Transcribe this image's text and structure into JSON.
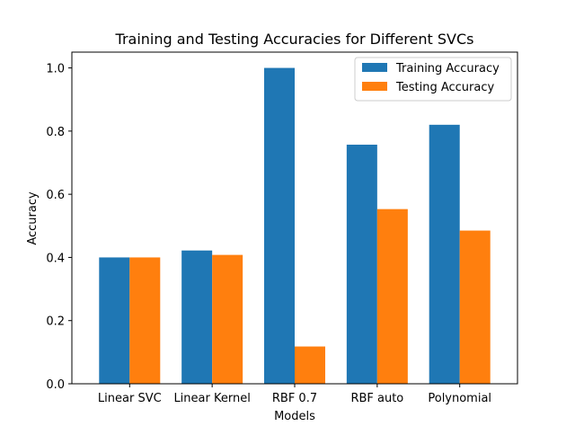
{
  "chart_data": {
    "type": "bar",
    "title": "Training and Testing Accuracies for Different SVCs",
    "xlabel": "Models",
    "ylabel": "Accuracy",
    "categories": [
      "Linear SVC",
      "Linear Kernel",
      "RBF 0.7",
      "RBF auto",
      "Polynomial"
    ],
    "series": [
      {
        "name": "Training Accuracy",
        "color": "#1f77b4",
        "values": [
          0.4,
          0.422,
          1.0,
          0.757,
          0.82
        ]
      },
      {
        "name": "Testing Accuracy",
        "color": "#ff7f0e",
        "values": [
          0.4,
          0.408,
          0.118,
          0.553,
          0.485
        ]
      }
    ],
    "ylim": [
      0,
      1.05
    ],
    "yticks": [
      0.0,
      0.2,
      0.4,
      0.6,
      0.8,
      1.0
    ],
    "ytick_labels": [
      "0.0",
      "0.2",
      "0.4",
      "0.6",
      "0.8",
      "1.0"
    ],
    "grid": false,
    "legend_position": "top-right"
  }
}
